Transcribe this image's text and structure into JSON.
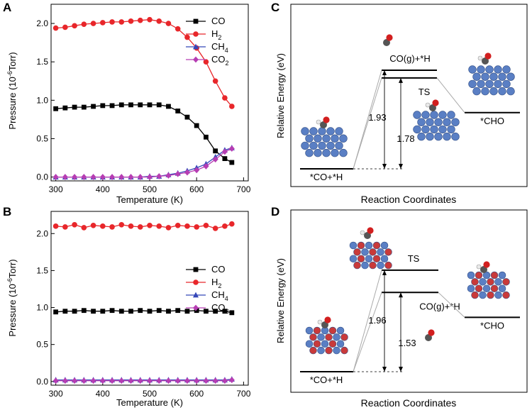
{
  "chart_data": [
    {
      "panel": "A",
      "type": "line",
      "xlabel": "Temperature (K)",
      "ylabel_pre": "Pressure (10",
      "ylabel_sup": "-6",
      "ylabel_post": "Torr)",
      "xlim": [
        290,
        710
      ],
      "ylim": [
        -0.05,
        2.25
      ],
      "xticks": [
        300,
        400,
        500,
        600,
        700
      ],
      "yticks": [
        "0.0",
        "0.5",
        "1.0",
        "1.5",
        "2.0"
      ],
      "legend": [
        "CO",
        "H2",
        "CH4",
        "CO2"
      ],
      "legend_labels": [
        {
          "base": "CO",
          "sub": ""
        },
        {
          "base": "H",
          "sub": "2"
        },
        {
          "base": "CH",
          "sub": "4"
        },
        {
          "base": "CO",
          "sub": "2"
        }
      ],
      "series": [
        {
          "name": "CO",
          "color": "#000000",
          "marker": "square",
          "x": [
            300,
            320,
            340,
            360,
            380,
            400,
            420,
            440,
            460,
            480,
            500,
            520,
            540,
            560,
            580,
            600,
            620,
            640,
            660,
            675
          ],
          "values": [
            0.89,
            0.9,
            0.91,
            0.91,
            0.92,
            0.93,
            0.93,
            0.94,
            0.94,
            0.94,
            0.94,
            0.94,
            0.92,
            0.86,
            0.78,
            0.67,
            0.52,
            0.34,
            0.24,
            0.19
          ]
        },
        {
          "name": "H2",
          "color": "#e8262a",
          "marker": "circle",
          "x": [
            300,
            320,
            340,
            360,
            380,
            400,
            420,
            440,
            460,
            480,
            500,
            520,
            540,
            560,
            580,
            600,
            620,
            640,
            660,
            675
          ],
          "values": [
            1.94,
            1.95,
            1.97,
            1.99,
            2.0,
            2.01,
            2.02,
            2.02,
            2.03,
            2.04,
            2.05,
            2.03,
            2.0,
            1.93,
            1.82,
            1.68,
            1.5,
            1.25,
            1.03,
            0.92
          ]
        },
        {
          "name": "CH4",
          "color": "#3547b8",
          "marker": "triangle",
          "x": [
            300,
            320,
            340,
            360,
            380,
            400,
            420,
            440,
            460,
            480,
            500,
            520,
            540,
            560,
            580,
            600,
            620,
            640,
            660,
            675
          ],
          "values": [
            0.0,
            0.0,
            0.0,
            0.0,
            0.0,
            0.0,
            0.0,
            0.0,
            0.0,
            0.0,
            0.01,
            0.01,
            0.03,
            0.05,
            0.08,
            0.12,
            0.17,
            0.26,
            0.35,
            0.38
          ]
        },
        {
          "name": "CO2",
          "color": "#b63db3",
          "marker": "diamond",
          "x": [
            300,
            320,
            340,
            360,
            380,
            400,
            420,
            440,
            460,
            480,
            500,
            520,
            540,
            560,
            580,
            600,
            620,
            640,
            660,
            675
          ],
          "values": [
            0.0,
            0.0,
            0.0,
            0.0,
            0.0,
            0.0,
            0.0,
            0.0,
            0.0,
            0.0,
            0.0,
            0.01,
            0.02,
            0.04,
            0.06,
            0.09,
            0.14,
            0.23,
            0.33,
            0.37
          ]
        }
      ]
    },
    {
      "panel": "B",
      "type": "line",
      "xlabel": "Temperature (K)",
      "ylabel_pre": "Pressure (10",
      "ylabel_sup": "-6",
      "ylabel_post": "Torr)",
      "xlim": [
        290,
        710
      ],
      "ylim": [
        -0.05,
        2.3
      ],
      "xticks": [
        300,
        400,
        500,
        600,
        700
      ],
      "yticks": [
        "0.0",
        "0.5",
        "1.0",
        "1.5",
        "2.0"
      ],
      "legend": [
        "CO",
        "H2",
        "CH4",
        "CO2"
      ],
      "legend_labels": [
        {
          "base": "CO",
          "sub": ""
        },
        {
          "base": "H",
          "sub": "2"
        },
        {
          "base": "CH",
          "sub": "4"
        },
        {
          "base": "CO",
          "sub": "2"
        }
      ],
      "series": [
        {
          "name": "CO",
          "color": "#000000",
          "marker": "square",
          "x": [
            300,
            320,
            340,
            360,
            380,
            400,
            420,
            440,
            460,
            480,
            500,
            520,
            540,
            560,
            580,
            600,
            620,
            640,
            660,
            675
          ],
          "values": [
            0.94,
            0.95,
            0.95,
            0.96,
            0.95,
            0.95,
            0.96,
            0.95,
            0.95,
            0.96,
            0.95,
            0.96,
            0.95,
            0.96,
            0.95,
            0.96,
            0.95,
            0.95,
            0.95,
            0.93
          ]
        },
        {
          "name": "H2",
          "color": "#e8262a",
          "marker": "circle",
          "x": [
            300,
            320,
            340,
            360,
            380,
            400,
            420,
            440,
            460,
            480,
            500,
            520,
            540,
            560,
            580,
            600,
            620,
            640,
            660,
            675
          ],
          "values": [
            2.1,
            2.09,
            2.12,
            2.08,
            2.11,
            2.1,
            2.09,
            2.12,
            2.1,
            2.09,
            2.11,
            2.1,
            2.08,
            2.11,
            2.1,
            2.09,
            2.11,
            2.07,
            2.1,
            2.13
          ]
        },
        {
          "name": "CH4",
          "color": "#3547b8",
          "marker": "triangle",
          "x": [
            300,
            320,
            340,
            360,
            380,
            400,
            420,
            440,
            460,
            480,
            500,
            520,
            540,
            560,
            580,
            600,
            620,
            640,
            660,
            675
          ],
          "values": [
            0.02,
            0.02,
            0.02,
            0.02,
            0.02,
            0.02,
            0.02,
            0.02,
            0.02,
            0.02,
            0.02,
            0.02,
            0.02,
            0.02,
            0.02,
            0.02,
            0.02,
            0.02,
            0.02,
            0.03
          ]
        },
        {
          "name": "CO2",
          "color": "#b63db3",
          "marker": "diamond",
          "x": [
            300,
            320,
            340,
            360,
            380,
            400,
            420,
            440,
            460,
            480,
            500,
            520,
            540,
            560,
            580,
            600,
            620,
            640,
            660,
            675
          ],
          "values": [
            0.01,
            0.01,
            0.01,
            0.01,
            0.01,
            0.01,
            0.01,
            0.01,
            0.01,
            0.01,
            0.01,
            0.01,
            0.01,
            0.01,
            0.01,
            0.01,
            0.01,
            0.01,
            0.01,
            0.02
          ]
        }
      ]
    },
    {
      "panel": "C",
      "type": "energy-diagram",
      "ylabel": "Relative Energy (eV)",
      "xlabel": "Reaction Coordinates",
      "states": [
        "*CO+*H",
        "CO(g)+*H",
        "TS",
        "*CHO"
      ],
      "energies": [
        0.0,
        1.93,
        1.78,
        1.1
      ],
      "annotations": [
        "1.93",
        "1.78"
      ]
    },
    {
      "panel": "D",
      "type": "energy-diagram",
      "ylabel": "Relative Energy (eV)",
      "xlabel": "Reaction Coordinates",
      "states": [
        "*CO+*H",
        "TS",
        "CO(g)+*H",
        "*CHO"
      ],
      "energies": [
        0.0,
        1.96,
        1.53,
        1.05
      ],
      "annotations": [
        "1.96",
        "1.53"
      ]
    }
  ]
}
